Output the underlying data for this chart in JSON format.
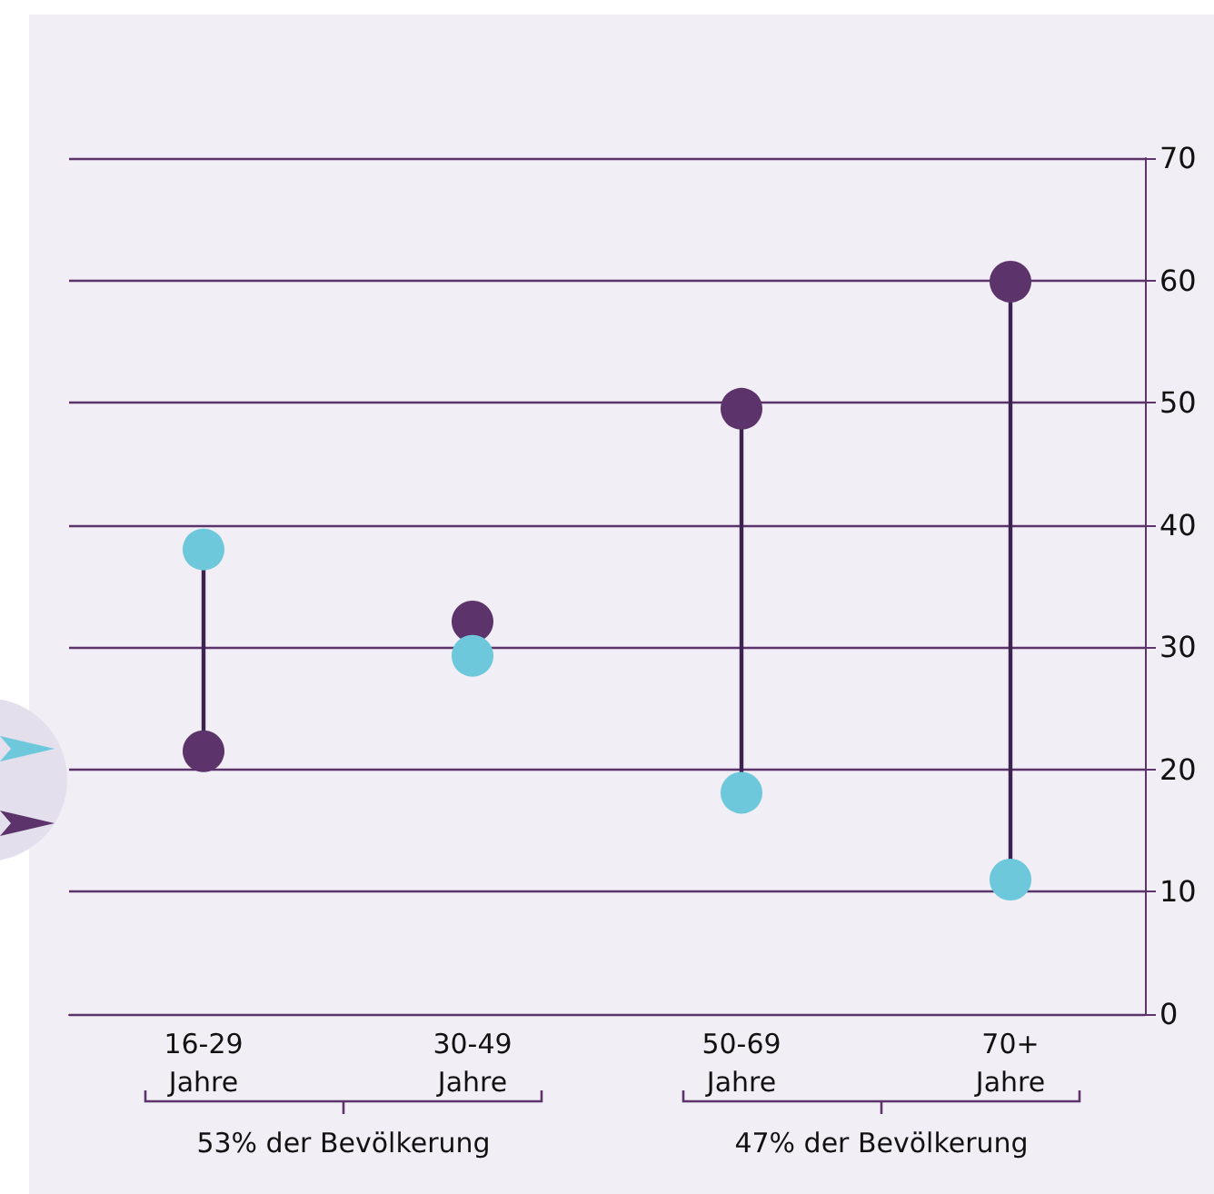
{
  "chart_data": {
    "type": "scatter",
    "categories": [
      "16-29\nJahre",
      "30-49\nJahre",
      "50-69\nJahre",
      "70+\nJahre"
    ],
    "series": [
      {
        "color": "#5c336b",
        "values": [
          21.5,
          32.1,
          49.5,
          59.9
        ]
      },
      {
        "color": "#6dc8dc",
        "values": [
          38.0,
          29.3,
          18.1,
          11.0
        ]
      }
    ],
    "ylim": [
      0,
      70
    ],
    "yticks": [
      0,
      10,
      20,
      30,
      40,
      50,
      60,
      70
    ],
    "grid": "y",
    "marker": "circle",
    "annotations": [
      "53% der Bevölkerung",
      "47% der Bevölkerung"
    ]
  }
}
